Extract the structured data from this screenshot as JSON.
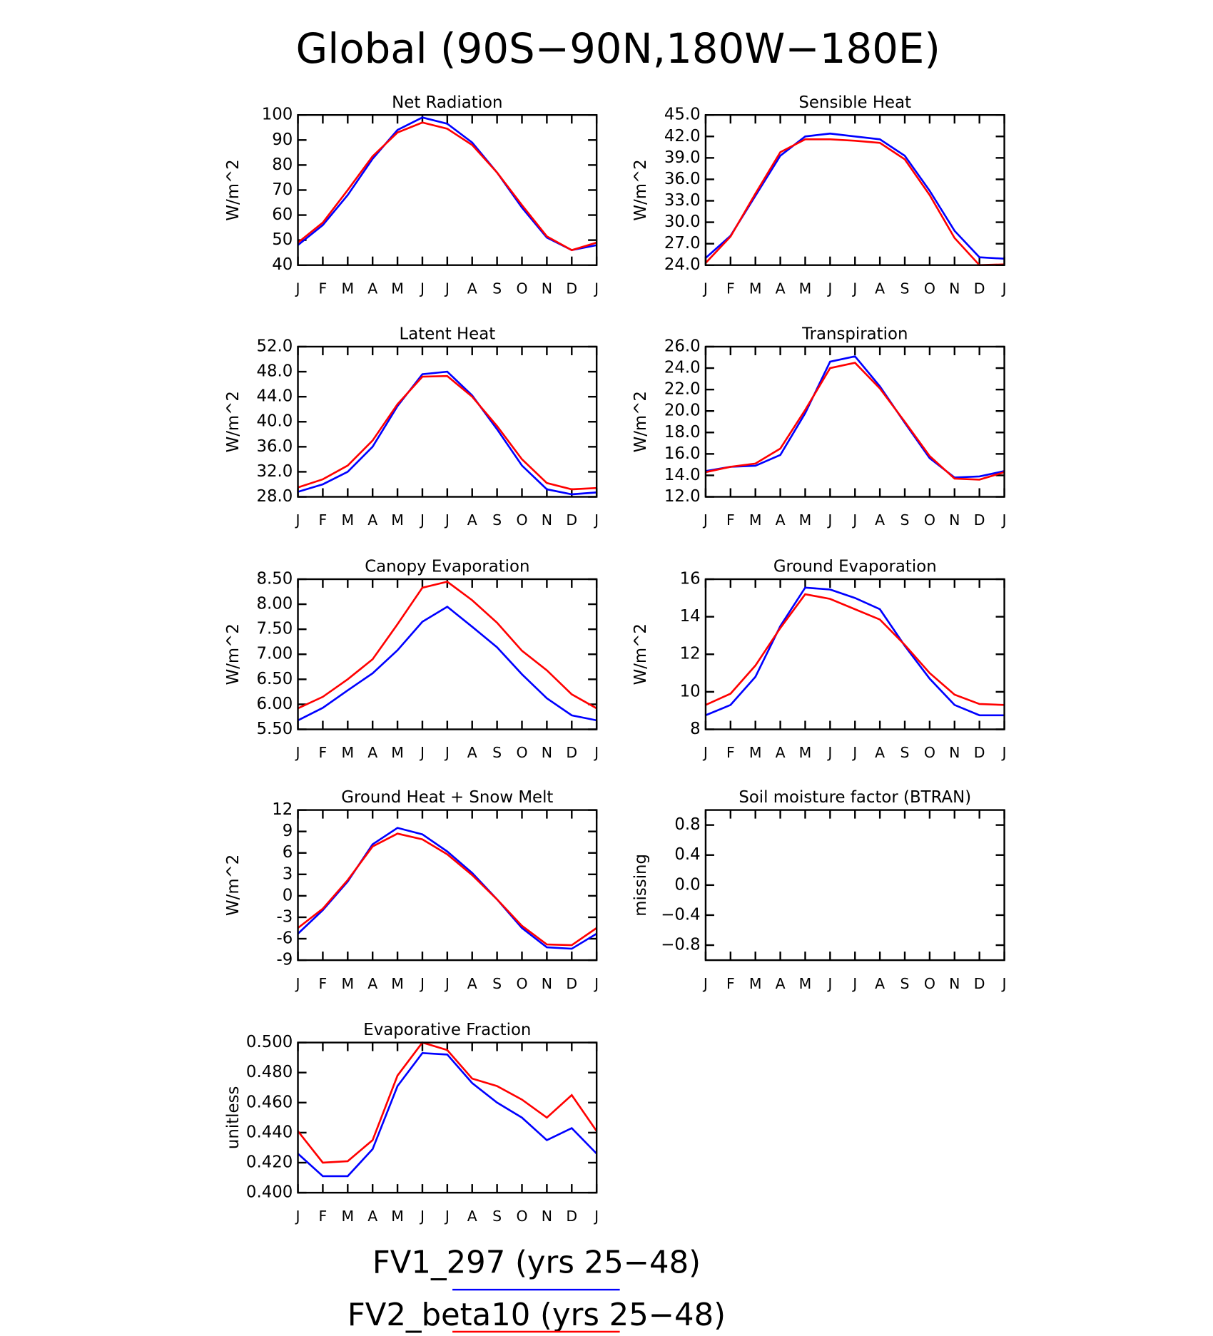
{
  "title": "Global (90S−90N,180W−180E)",
  "legend": [
    {
      "name": "FV1_297 (yrs 25−48)",
      "color": "#0000ff"
    },
    {
      "name": "FV2_beta10 (yrs 25−48)",
      "color": "#ff0000"
    }
  ],
  "chart_data": [
    {
      "type": "line",
      "title": "Net Radiation",
      "ylabel": "W/m^2",
      "categories": [
        "J",
        "F",
        "M",
        "A",
        "M",
        "J",
        "J",
        "A",
        "S",
        "O",
        "N",
        "D",
        "J"
      ],
      "ylim": [
        40,
        100
      ],
      "yticks": [
        40,
        50,
        60,
        70,
        80,
        90,
        100
      ],
      "series": [
        {
          "values": [
            48,
            56,
            68,
            82.5,
            94,
            99,
            96.5,
            89,
            77,
            63,
            51,
            46,
            48
          ]
        },
        {
          "values": [
            49,
            57,
            70,
            83.5,
            93,
            97,
            94.5,
            88,
            77,
            64,
            51.5,
            46,
            49
          ]
        }
      ]
    },
    {
      "type": "line",
      "title": "Sensible Heat",
      "ylabel": "W/m^2",
      "categories": [
        "J",
        "F",
        "M",
        "A",
        "M",
        "J",
        "J",
        "A",
        "S",
        "O",
        "N",
        "D",
        "J"
      ],
      "ylim": [
        24,
        45
      ],
      "yticks": [
        {
          "value": 24,
          "label": "24.0"
        },
        {
          "value": 27,
          "label": "27.0"
        },
        {
          "value": 30,
          "label": "30.0"
        },
        {
          "value": 33,
          "label": "33.0"
        },
        {
          "value": 36,
          "label": "36.0"
        },
        {
          "value": 39,
          "label": "39.0"
        },
        {
          "value": 42,
          "label": "42.0"
        },
        {
          "value": 45,
          "label": "45.0"
        }
      ],
      "series": [
        {
          "values": [
            25,
            28.1,
            33.7,
            39.3,
            42,
            42.4,
            42,
            41.6,
            39.3,
            34.4,
            28.8,
            25.1,
            24.9
          ]
        },
        {
          "values": [
            24.3,
            28,
            34,
            39.8,
            41.6,
            41.6,
            41.4,
            41.1,
            38.8,
            33.8,
            27.8,
            24.0,
            24.1
          ]
        }
      ]
    },
    {
      "type": "line",
      "title": "Latent Heat",
      "ylabel": "W/m^2",
      "categories": [
        "J",
        "F",
        "M",
        "A",
        "M",
        "J",
        "J",
        "A",
        "S",
        "O",
        "N",
        "D",
        "J"
      ],
      "ylim": [
        28,
        52
      ],
      "yticks": [
        {
          "value": 28,
          "label": "28.0"
        },
        {
          "value": 32,
          "label": "32.0"
        },
        {
          "value": 36,
          "label": "36.0"
        },
        {
          "value": 40,
          "label": "40.0"
        },
        {
          "value": 44,
          "label": "44.0"
        },
        {
          "value": 48,
          "label": "48.0"
        },
        {
          "value": 52,
          "label": "52.0"
        }
      ],
      "series": [
        {
          "values": [
            28.8,
            30,
            32,
            36,
            42.5,
            47.6,
            48,
            44.2,
            38.8,
            33,
            29.2,
            28.4,
            28.7
          ]
        },
        {
          "values": [
            29.5,
            30.8,
            33,
            37,
            42.8,
            47.2,
            47.3,
            44,
            39.3,
            34,
            30.2,
            29.2,
            29.4
          ]
        }
      ]
    },
    {
      "type": "line",
      "title": "Transpiration",
      "ylabel": "W/m^2",
      "categories": [
        "J",
        "F",
        "M",
        "A",
        "M",
        "J",
        "J",
        "A",
        "S",
        "O",
        "N",
        "D",
        "J"
      ],
      "ylim": [
        12,
        26
      ],
      "yticks": [
        {
          "value": 12,
          "label": "12.0"
        },
        {
          "value": 14,
          "label": "14.0"
        },
        {
          "value": 16,
          "label": "16.0"
        },
        {
          "value": 18,
          "label": "18.0"
        },
        {
          "value": 20,
          "label": "20.0"
        },
        {
          "value": 22,
          "label": "22.0"
        },
        {
          "value": 24,
          "label": "24.0"
        },
        {
          "value": 26,
          "label": "26.0"
        }
      ],
      "series": [
        {
          "values": [
            14.4,
            14.8,
            14.9,
            15.9,
            19.8,
            24.6,
            25.1,
            22.3,
            18.9,
            15.6,
            13.8,
            13.9,
            14.4
          ]
        },
        {
          "values": [
            14.3,
            14.8,
            15.1,
            16.5,
            20.1,
            24.0,
            24.5,
            22.1,
            19,
            15.8,
            13.7,
            13.6,
            14.3
          ]
        }
      ]
    },
    {
      "type": "line",
      "title": "Canopy Evaporation",
      "ylabel": "W/m^2",
      "categories": [
        "J",
        "F",
        "M",
        "A",
        "M",
        "J",
        "J",
        "A",
        "S",
        "O",
        "N",
        "D",
        "J"
      ],
      "ylim": [
        5.5,
        8.5
      ],
      "yticks": [
        {
          "value": 5.5,
          "label": "5.50"
        },
        {
          "value": 6,
          "label": "6.00"
        },
        {
          "value": 6.5,
          "label": "6.50"
        },
        {
          "value": 7,
          "label": "7.00"
        },
        {
          "value": 7.5,
          "label": "7.50"
        },
        {
          "value": 8,
          "label": "8.00"
        },
        {
          "value": 8.5,
          "label": "8.50"
        }
      ],
      "series": [
        {
          "values": [
            5.68,
            5.93,
            6.28,
            6.62,
            7.08,
            7.65,
            7.95,
            7.55,
            7.14,
            6.6,
            6.12,
            5.78,
            5.68
          ]
        },
        {
          "values": [
            5.92,
            6.15,
            6.5,
            6.9,
            7.6,
            8.33,
            8.45,
            8.08,
            7.63,
            7.07,
            6.68,
            6.2,
            5.92
          ]
        }
      ]
    },
    {
      "type": "line",
      "title": "Ground Evaporation",
      "ylabel": "W/m^2",
      "categories": [
        "J",
        "F",
        "M",
        "A",
        "M",
        "J",
        "J",
        "A",
        "S",
        "O",
        "N",
        "D",
        "J"
      ],
      "ylim": [
        8,
        16
      ],
      "yticks": [
        8,
        10,
        12,
        14,
        16
      ],
      "series": [
        {
          "values": [
            8.75,
            9.3,
            10.8,
            13.5,
            15.55,
            15.45,
            15.0,
            14.4,
            12.45,
            10.7,
            9.3,
            8.75,
            8.75
          ]
        },
        {
          "values": [
            9.3,
            9.9,
            11.4,
            13.4,
            15.2,
            14.95,
            14.4,
            13.85,
            12.5,
            11.0,
            9.85,
            9.35,
            9.3
          ]
        }
      ]
    },
    {
      "type": "line",
      "title": "Ground Heat + Snow Melt",
      "ylabel": "W/m^2",
      "categories": [
        "J",
        "F",
        "M",
        "A",
        "M",
        "J",
        "J",
        "A",
        "S",
        "O",
        "N",
        "D",
        "J"
      ],
      "ylim": [
        -9,
        12
      ],
      "yticks": [
        -9,
        -6,
        -3,
        0,
        3,
        6,
        9,
        12
      ],
      "series": [
        {
          "values": [
            -5.3,
            -2.0,
            2.0,
            7.2,
            9.5,
            8.6,
            6.2,
            3.2,
            -0.5,
            -4.5,
            -7.2,
            -7.4,
            -5.3
          ]
        },
        {
          "values": [
            -4.5,
            -1.8,
            2.2,
            6.9,
            8.7,
            7.9,
            5.8,
            2.9,
            -0.5,
            -4.2,
            -6.8,
            -6.9,
            -4.5
          ]
        }
      ]
    },
    {
      "type": "line",
      "title": "Soil moisture factor (BTRAN)",
      "ylabel": "missing",
      "categories": [
        "J",
        "F",
        "M",
        "A",
        "M",
        "J",
        "J",
        "A",
        "S",
        "O",
        "N",
        "D",
        "J"
      ],
      "ylim": [
        -1,
        1
      ],
      "yticks": [
        {
          "value": -0.8,
          "label": "−0.8"
        },
        {
          "value": -0.4,
          "label": "−0.4"
        },
        {
          "value": 0,
          "label": "0.0"
        },
        0.4,
        0.8
      ],
      "series": []
    },
    {
      "type": "line",
      "title": "Evaporative Fraction",
      "ylabel": "unitless",
      "categories": [
        "J",
        "F",
        "M",
        "A",
        "M",
        "J",
        "J",
        "A",
        "S",
        "O",
        "N",
        "D",
        "J"
      ],
      "ylim": [
        0.4,
        0.5
      ],
      "yticks": [
        {
          "value": 0.4,
          "label": "0.400"
        },
        {
          "value": 0.42,
          "label": "0.420"
        },
        {
          "value": 0.44,
          "label": "0.440"
        },
        {
          "value": 0.46,
          "label": "0.460"
        },
        {
          "value": 0.48,
          "label": "0.480"
        },
        {
          "value": 0.5,
          "label": "0.500"
        }
      ],
      "series": [
        {
          "values": [
            0.426,
            0.411,
            0.411,
            0.429,
            0.471,
            0.493,
            0.492,
            0.473,
            0.46,
            0.45,
            0.435,
            0.443,
            0.426
          ]
        },
        {
          "values": [
            0.441,
            0.42,
            0.421,
            0.435,
            0.478,
            0.5,
            0.495,
            0.476,
            0.471,
            0.462,
            0.45,
            0.465,
            0.441
          ]
        }
      ]
    }
  ]
}
